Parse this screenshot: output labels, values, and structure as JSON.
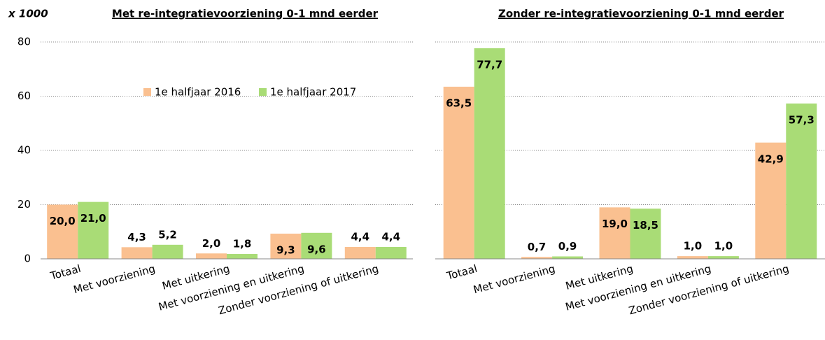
{
  "chart_data": [
    {
      "type": "bar",
      "title": "Met re-integratievoorziening  0-1 mnd eerder",
      "y_axis_label": "x 1000",
      "categories": [
        "Totaal",
        "Met voorziening",
        "Met uitkering",
        "Met voorziening en uitkering",
        "Zonder voorziening of uitkering"
      ],
      "series": [
        {
          "name": "1e halfjaar 2016",
          "color": "#fac090",
          "values": [
            20.0,
            4.3,
            2.0,
            9.3,
            4.4
          ],
          "value_labels": [
            "20,0",
            "4,3",
            "2,0",
            "9,3",
            "4,4"
          ]
        },
        {
          "name": "1e halfjaar 2017",
          "color": "#a9dc76",
          "values": [
            21.0,
            5.2,
            1.8,
            9.6,
            4.4
          ],
          "value_labels": [
            "21,0",
            "5,2",
            "1,8",
            "9,6",
            "4,4"
          ]
        }
      ],
      "ylim": [
        0,
        80
      ],
      "yticks": [
        0,
        20,
        40,
        60,
        80
      ],
      "grid": true
    },
    {
      "type": "bar",
      "title": "Zonder re-integratievoorziening  0-1 mnd eerder",
      "categories": [
        "Totaal",
        "Met voorziening",
        "Met uitkering",
        "Met voorziening en uitkering",
        "Zonder voorziening of uitkering"
      ],
      "series": [
        {
          "color": "#fac090",
          "values": [
            63.5,
            0.7,
            19.0,
            1.0,
            42.9
          ],
          "value_labels": [
            "63,5",
            "0,7",
            "19,0",
            "1,0",
            "42,9"
          ]
        },
        {
          "color": "#a9dc76",
          "values": [
            77.7,
            0.9,
            18.5,
            1.0,
            57.3
          ],
          "value_labels": [
            "77,7",
            "0,9",
            "18,5",
            "1,0",
            "57,3"
          ]
        }
      ],
      "ylim": [
        0,
        80
      ],
      "grid": true
    }
  ]
}
